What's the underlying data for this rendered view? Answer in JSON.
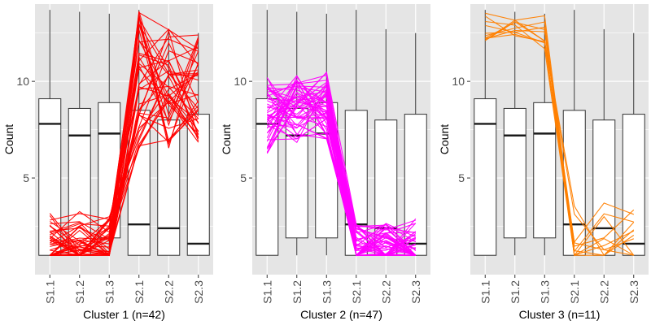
{
  "colors": {
    "panel_bg": "#e5e5e5",
    "grid": "#ffffff",
    "box_fill": "#ffffff",
    "box_stroke": "#333333",
    "axis_text": "#4d4d4d",
    "label_text": "#000000"
  },
  "chart_data": [
    {
      "type": "box+line",
      "xlabel": "Cluster 1 (n=42)",
      "ylabel": "Count",
      "ylim": [
        0,
        14
      ],
      "yticks": [
        5,
        10
      ],
      "categories": [
        "S1.1",
        "S1.2",
        "S1.3",
        "S2.1",
        "S2.2",
        "S2.3"
      ],
      "line_color": "#ff0000",
      "n_lines": 42,
      "boxes": [
        {
          "min": 1,
          "q1": 1,
          "median": 7.8,
          "q3": 9.1,
          "max": 13.7
        },
        {
          "min": 1,
          "q1": 1,
          "median": 7.2,
          "q3": 8.6,
          "max": 13.6
        },
        {
          "min": 1,
          "q1": 1.9,
          "median": 7.3,
          "q3": 8.9,
          "max": 13.5
        },
        {
          "min": 1,
          "q1": 1,
          "median": 2.6,
          "q3": 8.5,
          "max": 13.7
        },
        {
          "min": 1,
          "q1": 1,
          "median": 2.4,
          "q3": 8.0,
          "max": 12.7
        },
        {
          "min": 1,
          "q1": 1,
          "median": 1.6,
          "q3": 8.3,
          "max": 12.5
        }
      ],
      "lines_range": [
        [
          1,
          3.2
        ],
        [
          1,
          3.3
        ],
        [
          1,
          3.0
        ],
        [
          6.5,
          13.7
        ],
        [
          6.5,
          12.7
        ],
        [
          6.5,
          12.5
        ]
      ]
    },
    {
      "type": "box+line",
      "xlabel": "Cluster 2 (n=47)",
      "ylabel": "Count",
      "ylim": [
        0,
        14
      ],
      "yticks": [
        5,
        10
      ],
      "categories": [
        "S1.1",
        "S1.2",
        "S1.3",
        "S2.1",
        "S2.2",
        "S2.3"
      ],
      "line_color": "#ff00ff",
      "n_lines": 47,
      "boxes": [
        {
          "min": 1,
          "q1": 1,
          "median": 7.8,
          "q3": 9.1,
          "max": 13.7
        },
        {
          "min": 1,
          "q1": 1.9,
          "median": 7.2,
          "q3": 8.6,
          "max": 13.6
        },
        {
          "min": 1,
          "q1": 1.9,
          "median": 7.3,
          "q3": 8.9,
          "max": 13.5
        },
        {
          "min": 1,
          "q1": 1,
          "median": 2.6,
          "q3": 8.5,
          "max": 13.7
        },
        {
          "min": 1,
          "q1": 1,
          "median": 2.4,
          "q3": 8.0,
          "max": 12.7
        },
        {
          "min": 1,
          "q1": 1,
          "median": 1.6,
          "q3": 8.3,
          "max": 12.5
        }
      ],
      "lines_range": [
        [
          6.1,
          10.5
        ],
        [
          6.8,
          10.3
        ],
        [
          6.9,
          10.5
        ],
        [
          1,
          2.6
        ],
        [
          1,
          2.7
        ],
        [
          1,
          2.9
        ]
      ]
    },
    {
      "type": "box+line",
      "xlabel": "Cluster 3 (n=11)",
      "ylabel": "Count",
      "ylim": [
        0,
        14
      ],
      "yticks": [
        5,
        10
      ],
      "categories": [
        "S1.1",
        "S1.2",
        "S1.3",
        "S2.1",
        "S2.2",
        "S2.3"
      ],
      "line_color": "#ff7f00",
      "n_lines": 11,
      "boxes": [
        {
          "min": 1,
          "q1": 1,
          "median": 7.8,
          "q3": 9.1,
          "max": 13.7
        },
        {
          "min": 1,
          "q1": 1.9,
          "median": 7.2,
          "q3": 8.6,
          "max": 13.6
        },
        {
          "min": 1,
          "q1": 1.9,
          "median": 7.3,
          "q3": 8.9,
          "max": 13.5
        },
        {
          "min": 1,
          "q1": 1,
          "median": 2.6,
          "q3": 8.5,
          "max": 13.7
        },
        {
          "min": 1,
          "q1": 1,
          "median": 2.4,
          "q3": 8.0,
          "max": 12.7
        },
        {
          "min": 1,
          "q1": 1,
          "median": 1.6,
          "q3": 8.3,
          "max": 12.5
        }
      ],
      "lines_range": [
        [
          11.5,
          13.6
        ],
        [
          11.7,
          13.6
        ],
        [
          11.6,
          13.4
        ],
        [
          1,
          4.0
        ],
        [
          1,
          3.8
        ],
        [
          1,
          4.1
        ]
      ]
    }
  ]
}
